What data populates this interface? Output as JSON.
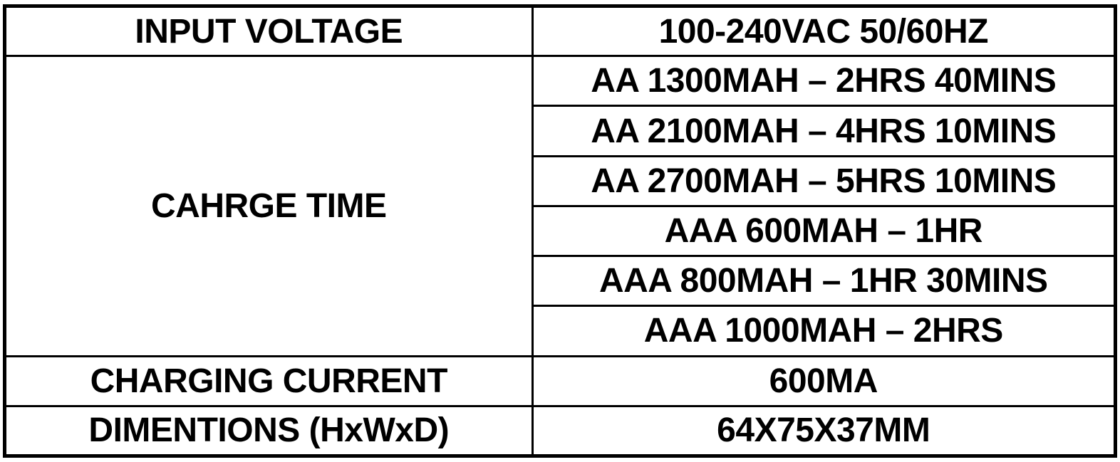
{
  "table": {
    "rows": [
      {
        "label": "INPUT VOLTAGE",
        "values": [
          "100-240VAC 50/60HZ"
        ]
      },
      {
        "label": "CAHRGE TIME",
        "values": [
          "AA 1300MAH – 2HRS 40MINS",
          "AA 2100MAH – 4HRS 10MINS",
          "AA 2700MAH – 5HRS 10MINS",
          "AAA 600MAH – 1HR",
          "AAA 800MAH – 1HR 30MINS",
          "AAA 1000MAH – 2HRS"
        ]
      },
      {
        "label": "CHARGING CURRENT",
        "values": [
          "600MA"
        ]
      },
      {
        "label": "DIMENTIONS (HxWxD)",
        "values": [
          "64X75X37MM"
        ]
      }
    ],
    "colors": {
      "border": "#000000",
      "background": "#ffffff",
      "text": "#000000"
    }
  }
}
